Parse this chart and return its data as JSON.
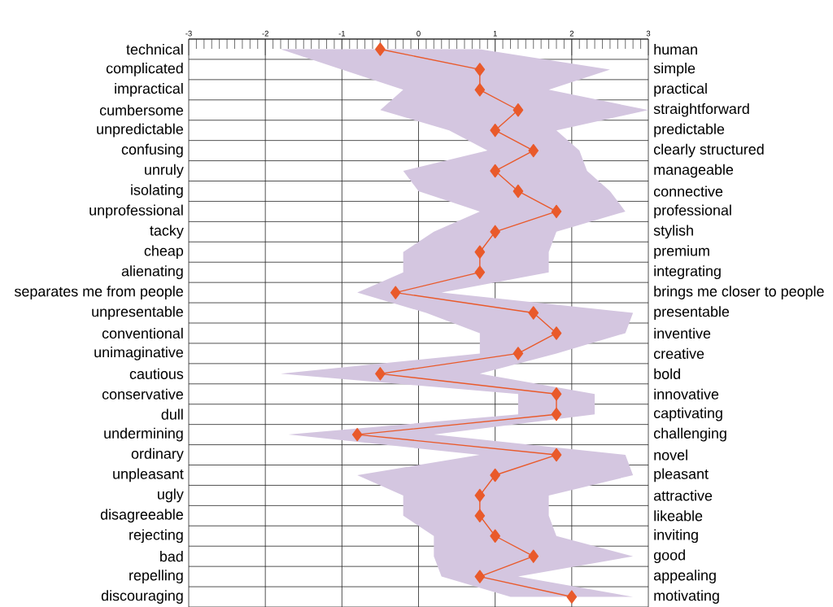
{
  "chart_data": {
    "type": "line",
    "orientation": "horizontal",
    "categories": [
      "technical",
      "complicated",
      "impractical",
      "cumbersome",
      "unpredictable",
      "confusing",
      "unruly",
      "isolating",
      "unprofessional",
      "tacky",
      "cheap",
      "alienating",
      "separates me from people",
      "unpresentable",
      "conventional",
      "unimaginative",
      "cautious",
      "conservative",
      "dull",
      "undermining",
      "ordinary",
      "unpleasant",
      "ugly",
      "disagreeable",
      "rejecting",
      "bad",
      "repelling",
      "discouraging"
    ],
    "y2_categories": [
      "human",
      "simple",
      "practical",
      "straightforward",
      "predictable",
      "clearly structured",
      "manageable",
      "connective",
      "professional",
      "stylish",
      "premium",
      "integrating",
      "brings me closer to people",
      "presentable",
      "inventive",
      "creative",
      "bold",
      "innovative",
      "captivating",
      "challenging",
      "novel",
      "pleasant",
      "attractive",
      "likeable",
      "inviting",
      "good",
      "appealing",
      "motivating"
    ],
    "series": [
      {
        "color": "#e95a2b",
        "values": [
          -0.5,
          0.8,
          0.8,
          1.3,
          1.0,
          1.5,
          1.0,
          1.3,
          1.8,
          1.0,
          0.8,
          0.8,
          -0.3,
          1.5,
          1.8,
          1.3,
          -0.5,
          1.8,
          1.8,
          -0.8,
          1.8,
          1.0,
          0.8,
          0.8,
          1.0,
          1.5,
          0.8,
          2.0
        ],
        "lower": [
          -1.8,
          -1.0,
          -0.2,
          -0.5,
          0.4,
          0.9,
          -0.2,
          0.0,
          0.8,
          0.2,
          -0.2,
          -0.2,
          -0.8,
          0.1,
          0.8,
          0.8,
          -1.8,
          1.3,
          1.3,
          -1.7,
          0.8,
          -0.8,
          -0.2,
          -0.2,
          0.2,
          0.2,
          0.3,
          1.2
        ],
        "upper": [
          0.8,
          2.5,
          1.7,
          3.0,
          1.8,
          2.1,
          2.2,
          2.5,
          2.7,
          1.8,
          1.7,
          1.7,
          0.3,
          2.8,
          2.7,
          1.8,
          0.8,
          2.3,
          2.3,
          0.2,
          2.7,
          2.8,
          1.7,
          1.7,
          1.8,
          2.8,
          1.3,
          2.8
        ]
      }
    ],
    "xlim": [
      -3,
      3
    ],
    "xticks": [
      -3,
      -2,
      -1,
      0,
      1,
      2,
      3
    ],
    "marker": "diamond",
    "line_style": "solid",
    "grid": true
  }
}
